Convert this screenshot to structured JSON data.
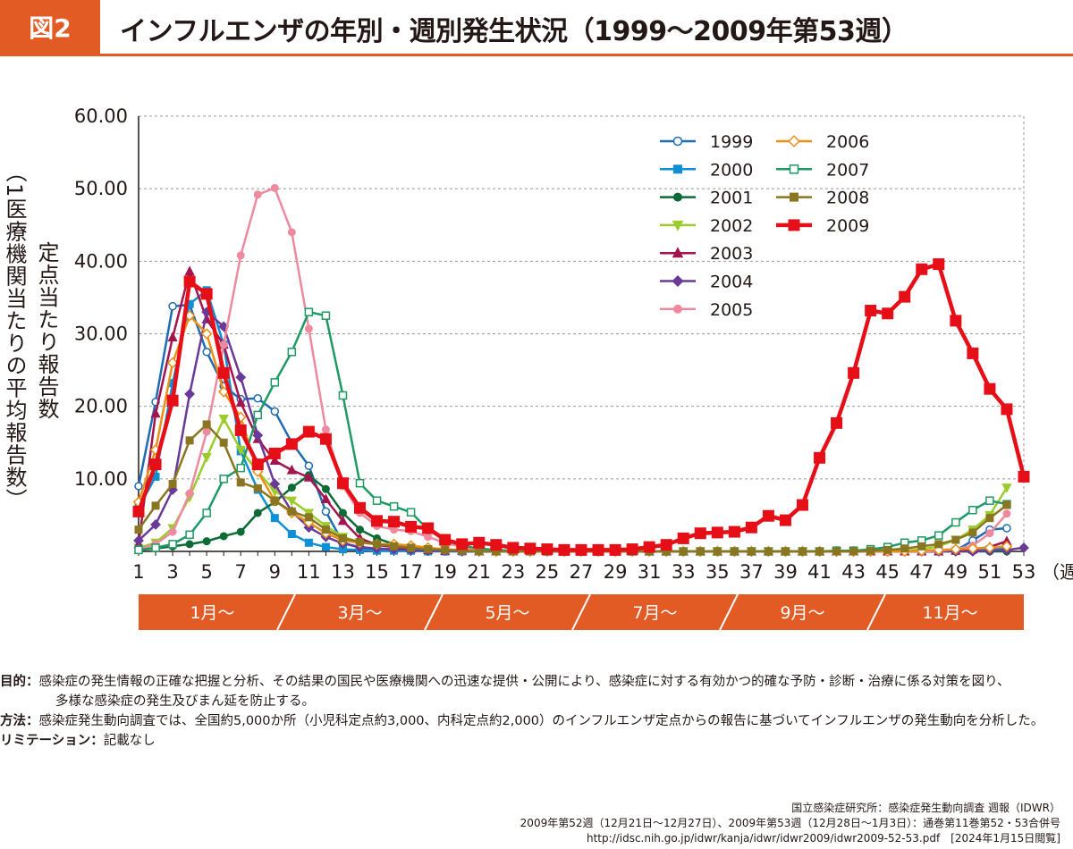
{
  "header": {
    "figure_label": "図2",
    "title": "インフルエンザの年別・週別発生状況（1999〜2009年第53週）"
  },
  "chart_data": {
    "type": "line",
    "ylabel_outer": "（1医療機関当たりの平均報告数）",
    "ylabel_inner": "定点当たり報告数",
    "xunit": "（週）",
    "ylim": [
      0,
      60
    ],
    "yticks": [
      "60.00",
      "50.00",
      "40.00",
      "30.00",
      "20.00",
      "10.00"
    ],
    "xticks": [
      "1",
      "3",
      "5",
      "7",
      "9",
      "11",
      "13",
      "15",
      "17",
      "19",
      "21",
      "23",
      "25",
      "27",
      "29",
      "31",
      "33",
      "35",
      "37",
      "39",
      "41",
      "43",
      "45",
      "47",
      "49",
      "51",
      "53"
    ],
    "grid": true,
    "legend_position": "top-right",
    "month_bands": [
      "1月〜",
      "3月〜",
      "5月〜",
      "7月〜",
      "9月〜",
      "11月〜"
    ],
    "colors": {
      "band": "#e25a24",
      "grid": "#999999"
    },
    "series": [
      {
        "name": "1999",
        "color": "#1f6cb3",
        "marker": "circle-open",
        "width": 2.5,
        "values": [
          9,
          20.6,
          33.8,
          34,
          27.5,
          22.8,
          21,
          21.1,
          19.3,
          15,
          11.8,
          5.5,
          1.2,
          0.5,
          0.3,
          0.2,
          0.1,
          0.1,
          0.1,
          0,
          0,
          0,
          0,
          0,
          0,
          0,
          0,
          0,
          0,
          0,
          0,
          0,
          0,
          0,
          0,
          0,
          0,
          0,
          0,
          0,
          0,
          0,
          0,
          0,
          0,
          0,
          0,
          0.1,
          0.1,
          1.5,
          3,
          3.2,
          null
        ]
      },
      {
        "name": "2000",
        "color": "#0f90d6",
        "marker": "square",
        "width": 2.5,
        "values": [
          6,
          10.3,
          23.2,
          34.1,
          36,
          28.5,
          13.8,
          8.5,
          4.6,
          2.4,
          1.2,
          0.6,
          0.3,
          0.2,
          0.1,
          0.1,
          0.1,
          0,
          0,
          0,
          0,
          0,
          0,
          0,
          0,
          0,
          0,
          0,
          0,
          0,
          0,
          0,
          0,
          0,
          0,
          0,
          0,
          0,
          0,
          0,
          0,
          0,
          0,
          0,
          0,
          0,
          0,
          0,
          0.1,
          0.2,
          0.3,
          0.4,
          null
        ]
      },
      {
        "name": "2001",
        "color": "#0d6b35",
        "marker": "circle",
        "width": 2.5,
        "values": [
          0.2,
          0.4,
          0.7,
          1,
          1.4,
          2.1,
          2.7,
          5.3,
          6.8,
          8.8,
          10.5,
          8.6,
          5.3,
          3,
          1.8,
          1,
          0.5,
          0.3,
          0.2,
          0.1,
          0,
          0,
          0,
          0,
          0,
          0,
          0,
          0,
          0,
          0,
          0,
          0,
          0,
          0,
          0,
          0,
          0,
          0,
          0,
          0,
          0,
          0,
          0,
          0,
          0,
          0,
          0,
          0,
          0,
          0,
          0,
          0,
          null
        ]
      },
      {
        "name": "2002",
        "color": "#9ccc2c",
        "marker": "triangle-down",
        "width": 2.5,
        "values": [
          0.5,
          1.2,
          3.2,
          7.5,
          13,
          18.3,
          14,
          11,
          8.3,
          7,
          5.3,
          3.5,
          2,
          1.3,
          0.9,
          0.7,
          0.5,
          0.3,
          0.2,
          0.1,
          0,
          0,
          0,
          0,
          0,
          0,
          0,
          0,
          0,
          0,
          0,
          0,
          0,
          0,
          0,
          0,
          0,
          0,
          0,
          0,
          0,
          0,
          0,
          0,
          0,
          0.1,
          0.3,
          0.7,
          1.6,
          3,
          5,
          8.8,
          null
        ]
      },
      {
        "name": "2003",
        "color": "#a3154e",
        "marker": "triangle",
        "width": 2.5,
        "values": [
          1,
          19,
          29.5,
          38.6,
          32,
          28.5,
          20.5,
          15.5,
          12.5,
          11.2,
          10.2,
          7.2,
          4.2,
          1.8,
          0.9,
          0.6,
          0.4,
          0.2,
          0.1,
          0.1,
          0,
          0,
          0,
          0,
          0,
          0,
          0,
          0,
          0,
          0,
          0,
          0,
          0,
          0,
          0,
          0,
          0,
          0,
          0,
          0,
          0,
          0,
          0,
          0,
          0,
          0,
          0,
          0,
          0.1,
          0.3,
          0.6,
          1.4,
          null
        ]
      },
      {
        "name": "2004",
        "color": "#6a3a98",
        "marker": "diamond",
        "width": 2.5,
        "values": [
          1.5,
          3.7,
          8.5,
          21.7,
          33,
          31,
          24,
          16,
          9.3,
          5.5,
          3.3,
          2,
          1.1,
          0.6,
          0.4,
          0.3,
          0.2,
          0.1,
          0.1,
          0,
          0,
          0,
          0,
          0,
          0,
          0,
          0,
          0,
          0,
          0,
          0,
          0,
          0,
          0,
          0,
          0,
          0,
          0,
          0,
          0,
          0,
          0,
          0,
          0,
          0,
          0,
          0,
          0,
          0,
          0,
          0.1,
          0.2,
          0.5
        ]
      },
      {
        "name": "2005",
        "color": "#ee8aa0",
        "marker": "circle",
        "width": 2.5,
        "values": [
          0.3,
          1,
          2.7,
          8,
          16.5,
          28.5,
          40.8,
          49.2,
          50.1,
          44,
          30.7,
          16.8,
          9,
          5.3,
          3.5,
          3,
          2.8,
          2,
          1.2,
          0.6,
          0.3,
          0.2,
          0.1,
          0,
          0,
          0,
          0,
          0,
          0,
          0,
          0,
          0,
          0,
          0,
          0,
          0,
          0,
          0,
          0,
          0,
          0,
          0,
          0,
          0,
          0,
          0,
          0,
          0.1,
          0.3,
          0.8,
          2.5,
          5.2,
          null
        ]
      },
      {
        "name": "2006",
        "color": "#ec8f16",
        "marker": "diamond-open",
        "width": 2.5,
        "values": [
          6.8,
          14,
          26,
          32.5,
          30,
          22,
          18.5,
          11,
          7,
          5.3,
          4,
          2.5,
          1.5,
          1.2,
          1,
          1,
          0.8,
          0.5,
          0.3,
          0.2,
          0.1,
          0,
          0,
          0,
          0,
          0,
          0,
          0,
          0,
          0,
          0,
          0,
          0,
          0,
          0,
          0,
          0,
          0,
          0,
          0,
          0,
          0,
          0,
          0,
          0,
          0,
          0.1,
          0.2,
          0.3,
          0.4,
          0.5,
          0.7,
          null
        ]
      },
      {
        "name": "2007",
        "color": "#1f9a64",
        "marker": "square-open",
        "width": 2.5,
        "values": [
          0.2,
          0.5,
          1,
          2.3,
          5.3,
          10,
          11.5,
          18.8,
          23.3,
          27.5,
          33,
          32.5,
          21.5,
          9.4,
          7,
          6.2,
          5.4,
          3,
          1.5,
          0.8,
          0.4,
          0.2,
          0.1,
          0.1,
          0,
          0,
          0,
          0,
          0,
          0,
          0,
          0,
          0,
          0,
          0,
          0,
          0,
          0,
          0,
          0,
          0,
          0.1,
          0.1,
          0.3,
          0.6,
          1.2,
          1.5,
          2.2,
          4,
          5.7,
          7,
          6.5,
          null
        ]
      },
      {
        "name": "2008",
        "color": "#8a7620",
        "marker": "square",
        "width": 2.5,
        "values": [
          3,
          6.3,
          9.3,
          15.3,
          17.5,
          15,
          9.5,
          8.7,
          7,
          5.5,
          4.7,
          3,
          1.8,
          1.3,
          1,
          0.7,
          0.5,
          0.3,
          0.2,
          0.1,
          0,
          0,
          0,
          0,
          0,
          0,
          0,
          0,
          0,
          0,
          0,
          0,
          0,
          0,
          0,
          0,
          0,
          0,
          0,
          0,
          0,
          0,
          0,
          0.1,
          0.2,
          0.4,
          0.7,
          1,
          1.6,
          2.6,
          4.6,
          6.4,
          null
        ]
      },
      {
        "name": "2009",
        "color": "#e60f17",
        "marker": "square",
        "width": 4.5,
        "values": [
          5.5,
          12,
          20.8,
          37.2,
          35.5,
          24.6,
          16.7,
          12,
          13.5,
          14.8,
          16.5,
          15.5,
          9.4,
          6,
          4.2,
          4.1,
          3.4,
          3.2,
          1.6,
          1,
          1.2,
          0.9,
          0.5,
          0.4,
          0.3,
          0.2,
          0.2,
          0.2,
          0.2,
          0.3,
          0.6,
          0.9,
          1.8,
          2.5,
          2.6,
          2.7,
          3.3,
          4.9,
          4.3,
          6.4,
          12.9,
          17.7,
          24.6,
          33.2,
          32.8,
          35.1,
          38.9,
          39.6,
          31.8,
          27.3,
          22.4,
          19.6,
          10.3
        ]
      }
    ]
  },
  "notes": [
    {
      "head": "目的：",
      "body": "感染症の発生情報の正確な把握と分析、その結果の国民や医療機関への迅速な提供・公開により、感染症に対する有効かつ的確な予防・診断・治療に係る対策を図り、",
      "cont": "多様な感染症の発生及びまん延を防止する。"
    },
    {
      "head": "方法：",
      "body": "感染症発生動向調査では、全国約5,000か所（小児科定点約3,000、内科定点約2,000）のインフルエンザ定点からの報告に基づいてインフルエンザの発生動向を分析した。",
      "cont": ""
    },
    {
      "head": "リミテーション：",
      "body": "記載なし",
      "cont": ""
    }
  ],
  "source": {
    "line1": "国立感染症研究所：感染症発生動向調査 週報（IDWR）",
    "line2": "2009年第52週（12月21日〜12月27日）、2009年第53週（12月28日〜1月3日）：通巻第11巻第52・53合併号",
    "line3": "http://idsc.nih.go.jp/idwr/kanja/idwr/idwr2009/idwr2009-52-53.pdf　[2024年1月15日閲覧]"
  }
}
